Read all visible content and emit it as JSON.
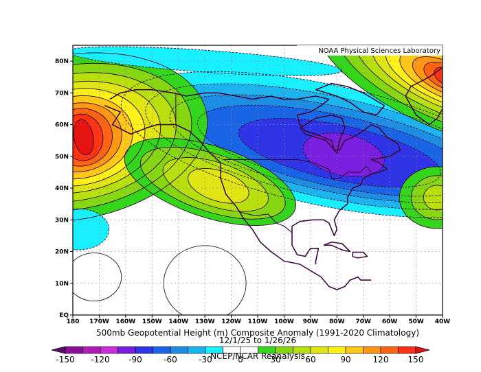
{
  "credit": "NOAA Physical Sciences Laboratory",
  "caption": {
    "line1": "500mb Geopotential Height (m) Composite Anomaly (1991-2020 Climatology)",
    "line2": "12/1/25  to 1/26/26",
    "line3": "NCEP/NCAR Reanalysis"
  },
  "lat_ticks": [
    "EQ",
    "10N",
    "20N",
    "30N",
    "40N",
    "50N",
    "60N",
    "70N",
    "80N"
  ],
  "lon_ticks": [
    "180",
    "170W",
    "160W",
    "150W",
    "140W",
    "130W",
    "120W",
    "110W",
    "100W",
    "90W",
    "80W",
    "70W",
    "60W",
    "50W",
    "40W"
  ],
  "colorbar": {
    "labels": [
      "-150",
      "-120",
      "-90",
      "-60",
      "-30",
      "0",
      "30",
      "60",
      "90",
      "120",
      "150"
    ],
    "colors": [
      "#5a0a6a",
      "#8a0f96",
      "#b21ab8",
      "#c82fd8",
      "#7a1ee0",
      "#2f35e6",
      "#1a64e6",
      "#1e8ee4",
      "#1cb4f0",
      "#19f0ff",
      "#ffffff",
      "#ffffff",
      "#33d61a",
      "#86d612",
      "#b8e00f",
      "#e0e614",
      "#fff21a",
      "#ffc818",
      "#ff9614",
      "#ff6414",
      "#ff3214",
      "#e61410"
    ]
  },
  "anomaly_centers": [
    {
      "name": "north-pacific-ridge",
      "lon": -178,
      "lat": 56,
      "value": 180
    },
    {
      "name": "west-us-ridge",
      "lon": -128,
      "lat": 43,
      "value": 70
    },
    {
      "name": "eastern-canada-trough",
      "lon": -78,
      "lat": 52,
      "value": -140
    },
    {
      "name": "greenland-ridge",
      "lon": -42,
      "lat": 75,
      "value": 150
    },
    {
      "name": "north-atlantic-ridge",
      "lon": -42,
      "lat": 37,
      "value": 60
    },
    {
      "name": "pacific-low",
      "lon": -178,
      "lat": 28,
      "value": -40
    }
  ],
  "colors": {
    "coast": "#3a0a3a",
    "contour": "#2a0a2a",
    "grid": "#888888"
  }
}
